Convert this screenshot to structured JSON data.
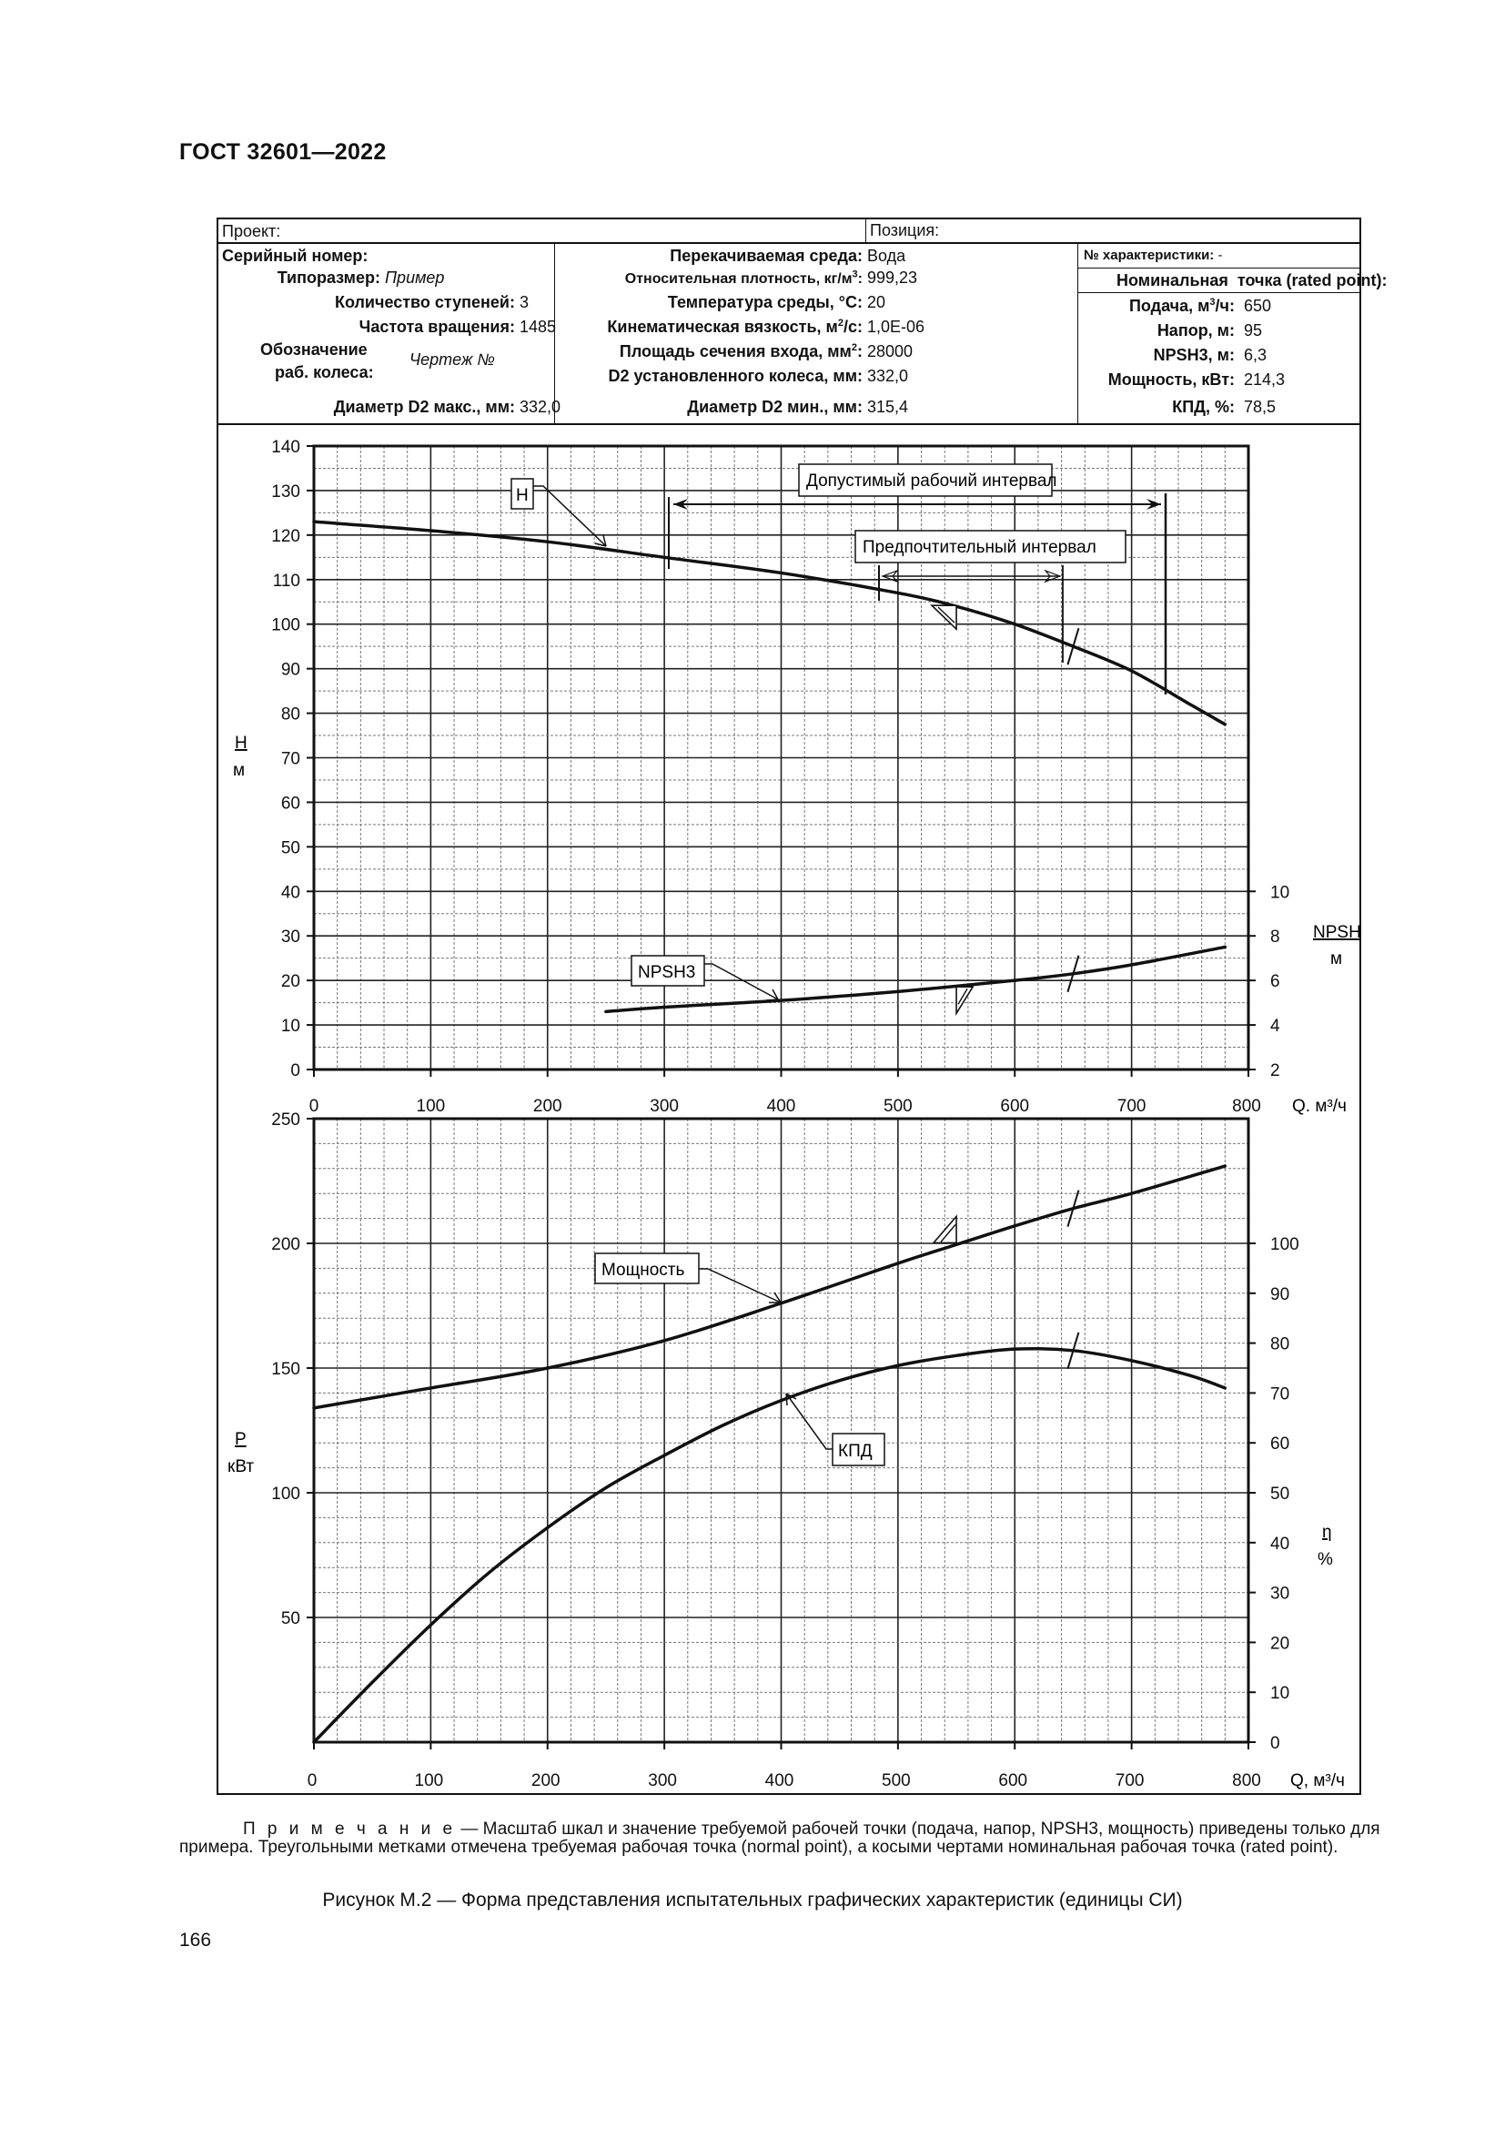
{
  "header": {
    "standard": "ГОСТ 32601—2022"
  },
  "table": {
    "project_label": "Проект:",
    "position_label": "Позиция:",
    "col1": {
      "serial_label": "Серийный номер:",
      "rows": [
        {
          "label": "Типоразмер:",
          "value": "Пример",
          "italic": true
        },
        {
          "label": "Количество ступеней:",
          "value": "3"
        },
        {
          "label": "Частота вращения:",
          "value": "1485"
        },
        {
          "label": "Обозначение",
          "label2": "раб. колеса:",
          "value": "Чертеж №",
          "italic": true
        },
        {
          "label": "Диаметр D2 макс., мм:",
          "value": "332,0"
        }
      ]
    },
    "col2": {
      "rows": [
        {
          "label": "Перекачиваемая среда:",
          "value": "Вода"
        },
        {
          "label": "Относительная плотность, кг/м",
          "sup": "3",
          "tail": ":",
          "value": "999,23"
        },
        {
          "label": "Температура среды, °С:",
          "value": "20"
        },
        {
          "label": "Кинематическая вязкость, м",
          "sup": "2",
          "tail": "/с:",
          "value": "1,0E-06"
        },
        {
          "label": "Площадь сечения входа, мм",
          "sup": "2",
          "tail": ":",
          "value": "28000"
        },
        {
          "label": "D2 установленного колеса, мм:",
          "value": "332,0"
        },
        {
          "label": "Диаметр D2 мин., мм:",
          "value": "315,4"
        }
      ]
    },
    "col3": {
      "char_no_label": "№ характеристики:",
      "char_no_value": "-",
      "rated_title_a": "Номинальная",
      "rated_title_b": "точка (rated point):",
      "rows": [
        {
          "label": "Подача, м",
          "sup": "3",
          "tail": "/ч:",
          "value": "650"
        },
        {
          "label": "Напор, м:",
          "value": "95"
        },
        {
          "label": "NPSH3, м:",
          "value": "6,3"
        },
        {
          "label": "Мощность, кВт:",
          "value": "214,3"
        },
        {
          "label": "КПД, %:",
          "value": "78,5"
        }
      ]
    }
  },
  "labels": {
    "h_axis": "H",
    "h_unit": "м",
    "npsh_axis": "NPSH",
    "npsh_unit": "м",
    "p_axis": "P",
    "p_unit": "кВт",
    "eta_axis": "η",
    "eta_unit": "%",
    "q_axis_top": "Q. м³/ч",
    "q_axis_bottom": "Q, м³/ч",
    "callout_h": "H",
    "callout_npsh": "NPSH3",
    "callout_power": "Мощность",
    "callout_eff": "КПД",
    "allowable_range": "Допустимый рабочий интервал",
    "preferred_range": "Предпочтительный интервал"
  },
  "chart_data": [
    {
      "type": "line",
      "title": "Напор и NPSH3",
      "xlabel": "Q, м³/ч",
      "ylabel": "H, м",
      "y2label": "NPSH, м",
      "xlim": [
        0,
        800
      ],
      "ylim": [
        0,
        140
      ],
      "y2lim": [
        2,
        10
      ],
      "x_ticks": [
        0,
        100,
        200,
        300,
        400,
        500,
        600,
        700,
        800
      ],
      "y_ticks": [
        0,
        10,
        20,
        30,
        40,
        50,
        60,
        70,
        80,
        90,
        100,
        110,
        120,
        130,
        140
      ],
      "y2_ticks": [
        2,
        4,
        6,
        8,
        10
      ],
      "grid": true,
      "series": [
        {
          "name": "H",
          "axis": "y",
          "x": [
            0,
            100,
            200,
            300,
            400,
            500,
            550,
            600,
            650,
            700,
            750,
            780
          ],
          "values": [
            123,
            121,
            118.5,
            115,
            111.5,
            107,
            104,
            100,
            95,
            89.5,
            82,
            77.5
          ]
        },
        {
          "name": "NPSH3",
          "axis": "y2",
          "x": [
            250,
            300,
            400,
            500,
            600,
            650,
            700,
            780
          ],
          "values": [
            4.6,
            4.8,
            5.1,
            5.5,
            6.0,
            6.3,
            6.7,
            7.5
          ]
        }
      ],
      "annotations": [
        {
          "text": "Допустимый рабочий интервал",
          "x_from": 300,
          "x_to": 725
        },
        {
          "text": "Предпочтительный интервал",
          "x_from": 485,
          "x_to": 660
        },
        {
          "text": "normal point (triangle)",
          "x": 550
        },
        {
          "text": "rated point (slash)",
          "x": 650
        }
      ]
    },
    {
      "type": "line",
      "title": "Мощность и КПД",
      "xlabel": "Q, м³/ч",
      "ylabel": "P, кВт",
      "y2label": "η, %",
      "xlim": [
        0,
        800
      ],
      "ylim": [
        0,
        250
      ],
      "y2lim": [
        0,
        125
      ],
      "x_ticks": [
        0,
        100,
        200,
        300,
        400,
        500,
        600,
        700,
        800
      ],
      "y_ticks": [
        50,
        100,
        150,
        200,
        250
      ],
      "y2_ticks": [
        0,
        10,
        20,
        30,
        40,
        50,
        60,
        70,
        80,
        90,
        100
      ],
      "grid": true,
      "series": [
        {
          "name": "Мощность",
          "axis": "y",
          "x": [
            0,
            100,
            200,
            300,
            400,
            500,
            550,
            600,
            650,
            700,
            780
          ],
          "values": [
            134,
            142,
            150,
            161,
            176,
            192,
            199.5,
            207,
            214,
            220,
            231
          ]
        },
        {
          "name": "КПД",
          "axis": "y2",
          "x": [
            0,
            50,
            100,
            150,
            200,
            250,
            300,
            350,
            400,
            450,
            500,
            550,
            600,
            650,
            700,
            750,
            780
          ],
          "values": [
            0,
            12,
            23.5,
            34,
            43,
            51,
            57.5,
            63.5,
            68.5,
            72.5,
            75.5,
            77.5,
            78.8,
            78.5,
            76.5,
            73.5,
            71
          ]
        }
      ],
      "annotations": [
        {
          "text": "normal point (triangle)",
          "x": 550
        },
        {
          "text": "rated point (slash)",
          "x": 650
        }
      ]
    }
  ],
  "note": {
    "prefix": "П р и м е ч а н и е",
    "text": " — Масштаб шкал и значение требуемой рабочей точки (подача, напор, NPSH3, мощность) приведены только для примера. Треугольными метками отмечена требуемая рабочая точка (normal point), а косыми чертами номинальная рабочая точка (rated point)."
  },
  "caption": "Рисунок М.2 — Форма представления испытательных графических характеристик (единицы СИ)",
  "page_number": "166"
}
